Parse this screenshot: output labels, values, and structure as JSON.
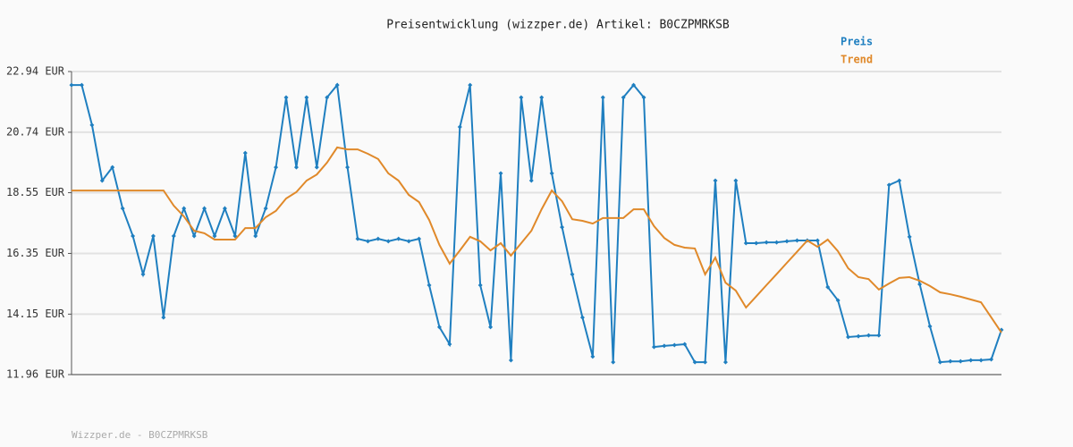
{
  "chart_data": {
    "type": "line",
    "title": "Preisentwicklung (wizzper.de) Artikel: B0CZPMRKSB",
    "footer": "Wizzper.de - B0CZPMRKSB",
    "categories": [
      null,
      null,
      null,
      null,
      null,
      null,
      null,
      null,
      null,
      null,
      null,
      null,
      null,
      null,
      null,
      null,
      null,
      null,
      null,
      null,
      null,
      null,
      null,
      null,
      null,
      null,
      null,
      null,
      null,
      null,
      null,
      null,
      null,
      null,
      null,
      null,
      null,
      null,
      null,
      null,
      null,
      null,
      null,
      null,
      null,
      null,
      null,
      null,
      null,
      null,
      null,
      null,
      null,
      null,
      null,
      null,
      null,
      null,
      null,
      null,
      null,
      null,
      null,
      null,
      null,
      null,
      null,
      null,
      null,
      null,
      null,
      null,
      null,
      null,
      null,
      null,
      null,
      null,
      null,
      null,
      null,
      null,
      null,
      null,
      null,
      null,
      null,
      null,
      null,
      null,
      null,
      null
    ],
    "series": [
      {
        "name": "Preis",
        "color": "#1f7fc0",
        "markers": true,
        "values": [
          22.45,
          22.45,
          21.0,
          18.99,
          19.47,
          17.98,
          16.98,
          15.59,
          16.98,
          14.03,
          16.98,
          17.98,
          16.98,
          17.98,
          16.98,
          17.98,
          16.98,
          19.99,
          16.98,
          17.98,
          19.47,
          22.0,
          19.47,
          22.0,
          19.47,
          22.0,
          22.45,
          19.47,
          16.88,
          16.79,
          16.88,
          16.79,
          16.88,
          16.79,
          16.88,
          15.2,
          13.68,
          13.06,
          20.93,
          22.45,
          15.2,
          13.68,
          19.25,
          12.48,
          22.0,
          18.99,
          22.0,
          19.25,
          17.3,
          15.59,
          14.03,
          12.61,
          22.0,
          12.41,
          22.0,
          22.45,
          22.0,
          12.96,
          13.0,
          13.03,
          13.06,
          12.41,
          12.41,
          18.99,
          12.41,
          18.99,
          16.72,
          16.72,
          16.75,
          16.75,
          16.79,
          16.82,
          16.82,
          16.82,
          15.13,
          14.65,
          13.32,
          13.35,
          13.38,
          13.38,
          18.83,
          18.99,
          16.95,
          15.23,
          13.71,
          12.41,
          12.44,
          12.44,
          12.48,
          12.48,
          12.51,
          13.58
        ]
      },
      {
        "name": "Trend",
        "color": "#e0892a",
        "markers": false,
        "values": [
          18.63,
          18.63,
          18.63,
          18.63,
          18.63,
          18.63,
          18.63,
          18.63,
          18.63,
          18.63,
          18.08,
          17.69,
          17.17,
          17.08,
          16.85,
          16.85,
          16.85,
          17.27,
          17.27,
          17.66,
          17.89,
          18.34,
          18.57,
          18.99,
          19.21,
          19.64,
          20.19,
          20.12,
          20.12,
          19.96,
          19.77,
          19.25,
          18.99,
          18.47,
          18.21,
          17.56,
          16.66,
          15.98,
          16.46,
          16.95,
          16.79,
          16.46,
          16.72,
          16.27,
          16.72,
          17.17,
          17.95,
          18.63,
          18.24,
          17.59,
          17.53,
          17.43,
          17.63,
          17.63,
          17.63,
          17.95,
          17.95,
          17.34,
          16.91,
          16.66,
          16.56,
          16.53,
          15.59,
          16.2,
          15.29,
          15.0,
          14.39,
          14.79,
          15.2,
          15.6,
          16.01,
          16.41,
          16.82,
          16.59,
          16.85,
          16.43,
          15.81,
          15.49,
          15.42,
          15.04,
          15.26,
          15.46,
          15.49,
          15.36,
          15.17,
          14.94,
          14.87,
          14.78,
          14.68,
          14.58,
          14.03,
          13.48
        ]
      }
    ],
    "ylim": [
      11.96,
      22.94
    ],
    "yticks": [
      {
        "value": 11.96,
        "label": "11.96 EUR"
      },
      {
        "value": 14.15,
        "label": "14.15 EUR"
      },
      {
        "value": 16.35,
        "label": "16.35 EUR"
      },
      {
        "value": 18.55,
        "label": "18.55 EUR"
      },
      {
        "value": 20.74,
        "label": "20.74 EUR"
      },
      {
        "value": 22.94,
        "label": "22.94 EUR"
      }
    ],
    "grid": true
  }
}
